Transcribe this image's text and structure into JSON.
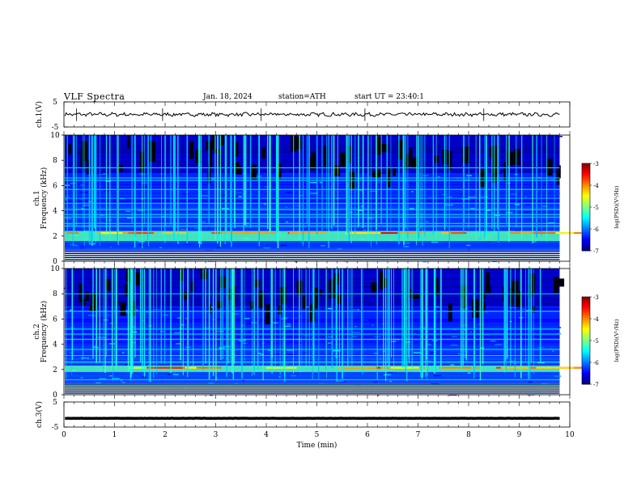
{
  "header": {
    "title": "VLF  Spectra",
    "date": "Jan. 18, 2024",
    "station": "station=ATH",
    "start": "start  UT  =   23:40:1"
  },
  "chart_data": [
    {
      "type": "line",
      "ylabel": "ch.1(V)",
      "ylim": [
        -5,
        5
      ],
      "yticks": [
        "5",
        "-5"
      ],
      "xlim": [
        0,
        10
      ],
      "series": [
        {
          "mean": 0,
          "amplitude_approx": 1
        }
      ]
    },
    {
      "type": "heatmap",
      "ylabel_line1": "ch.1",
      "ylabel_line2": "Frequency (kHz)",
      "ylim": [
        0,
        10
      ],
      "yticks": [
        "0",
        "2",
        "4",
        "6",
        "8",
        "10"
      ],
      "xlim": [
        0,
        10
      ],
      "data_end_min": 9.8,
      "colorbar": {
        "label": "log(PSD)(V²/Hz)",
        "ticks": [
          "-3",
          "-4",
          "-5",
          "-6",
          "-7"
        ],
        "range": [
          -7,
          -3
        ]
      },
      "colors": {
        "low": "#00007f",
        "high": "#ff0000"
      },
      "features": {
        "hiss_band_khz": [
          1.6,
          2.4
        ],
        "line_khz": [
          0.2,
          0.4,
          0.6,
          0.8,
          2.8,
          3.0,
          3.5,
          3.7,
          4.1,
          4.6,
          5.0,
          5.7,
          6.4,
          6.6,
          7.4
        ]
      }
    },
    {
      "type": "heatmap",
      "ylabel_line1": "ch.2",
      "ylabel_line2": "Frequency (kHz)",
      "ylim": [
        0,
        10
      ],
      "yticks": [
        "0",
        "2",
        "4",
        "6",
        "8",
        "10"
      ],
      "xlim": [
        0,
        10
      ],
      "data_end_min": 9.8,
      "colorbar": {
        "label": "log(PSD)(V²/Hz)",
        "ticks": [
          "-3",
          "-4",
          "-5",
          "-6",
          "-7"
        ],
        "range": [
          -7,
          -3
        ]
      },
      "colors": {
        "low": "#00007f",
        "high": "#ff0000"
      },
      "features": {
        "hiss_band_khz": [
          1.8,
          2.3
        ],
        "line_khz": [
          0.3,
          0.5,
          0.8,
          1.2,
          2.6,
          3.1,
          3.6,
          4.4,
          4.8,
          5.2,
          6.6,
          8.0
        ]
      }
    },
    {
      "type": "line",
      "ylabel": "ch.3(V)",
      "ylim": [
        -5,
        5
      ],
      "yticks": [
        "5",
        "-5"
      ],
      "xlim": [
        0,
        10
      ],
      "xlabel": "Time  (min)",
      "xticks": [
        "0",
        "1",
        "2",
        "3",
        "4",
        "5",
        "6",
        "7",
        "8",
        "9",
        "10"
      ],
      "series": [
        {
          "mean": -1.5,
          "amplitude_approx": 0.1
        }
      ]
    }
  ]
}
